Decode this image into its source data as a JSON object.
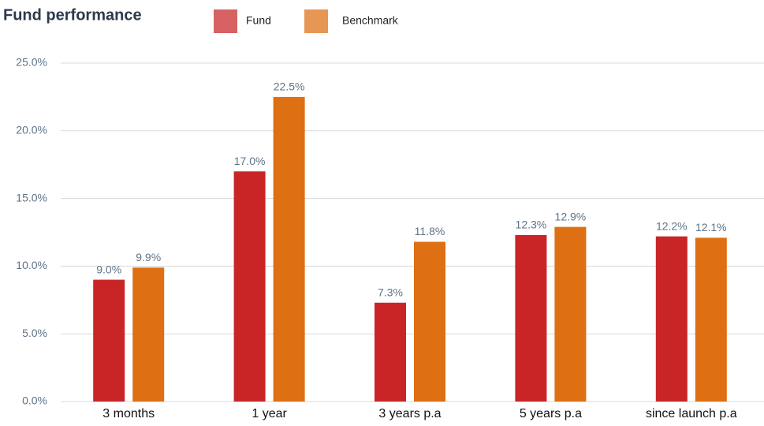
{
  "chart_data": {
    "type": "bar",
    "title": "Fund performance",
    "categories": [
      "3 months",
      "1 year",
      "3 years p.a",
      "5 years p.a",
      "since launch p.a"
    ],
    "series": [
      {
        "name": "Fund",
        "color": "#c92527",
        "values": [
          9.0,
          17.0,
          7.3,
          12.3,
          12.2
        ],
        "value_labels": [
          "9.0%",
          "17.0%",
          "7.3%",
          "12.3%",
          "12.2%"
        ]
      },
      {
        "name": "Benchmark",
        "color": "#de6f12",
        "values": [
          9.9,
          22.5,
          11.8,
          12.9,
          12.1
        ],
        "value_labels": [
          "9.9%",
          "22.5%",
          "11.8%",
          "12.9%",
          "12.1%"
        ]
      }
    ],
    "ylim": [
      0,
      25
    ],
    "yticks": [
      {
        "value": 0,
        "label": "0.0%"
      },
      {
        "value": 5,
        "label": "5.0%"
      },
      {
        "value": 10,
        "label": "10.0%"
      },
      {
        "value": 15,
        "label": "15.0%"
      },
      {
        "value": 20,
        "label": "20.0%"
      },
      {
        "value": 25,
        "label": "25.0%"
      }
    ],
    "grid": true,
    "legend": "top"
  }
}
